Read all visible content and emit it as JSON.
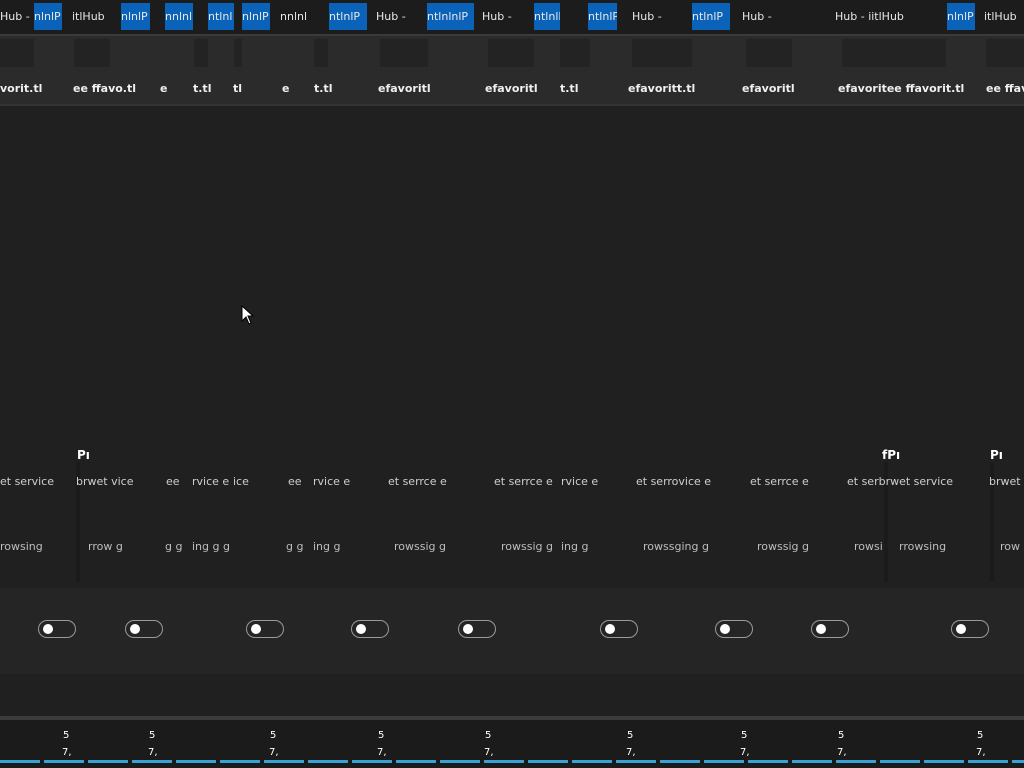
{
  "tabs": [
    {
      "label": "Hub -",
      "active": false
    },
    {
      "label": "nlnlP",
      "active": true
    },
    {
      "label": "itlHub",
      "active": false
    },
    {
      "label": "nlnlP",
      "active": true
    },
    {
      "label": "nnlnl",
      "active": true
    },
    {
      "label": "ntlnl",
      "active": true
    },
    {
      "label": "nlnlP",
      "active": true
    },
    {
      "label": "nnlnl",
      "active": false
    },
    {
      "label": "ntlnlP",
      "active": true
    },
    {
      "label": "Hub -",
      "active": false
    },
    {
      "label": "ntlnlnlP",
      "active": true
    },
    {
      "label": "Hub -",
      "active": false
    },
    {
      "label": "ntlnlP",
      "active": true
    },
    {
      "label": "Hub -",
      "active": false
    },
    {
      "label": "ntlnlP",
      "active": true
    },
    {
      "label": "Hub -",
      "active": false
    },
    {
      "label": "ntlnlP",
      "active": true
    },
    {
      "label": "Hub - iitlHub",
      "active": false
    },
    {
      "label": "nlnlP",
      "active": true
    },
    {
      "label": "itlHub",
      "active": false
    }
  ],
  "favorites": [
    "vorit.tl",
    "ee ffavo.tl",
    "e",
    "t.tl",
    "tl",
    "e",
    "t.tl",
    "efavoritl",
    "efavoritl",
    "t.tl",
    "efavoritt.tl",
    "efavoritl",
    "efavoritee ffavorit.tl",
    "ee ffavo"
  ],
  "headers": [
    "Pı",
    "fPı",
    "Pı"
  ],
  "services": [
    "et service",
    "brwet vice",
    "ee",
    "rvice e",
    "ice",
    "ee",
    "rvice e",
    "et serrce e",
    "et serrce e",
    "rvice e",
    "et serrovice e",
    "et serrce e",
    "et serbrwet service",
    "brwet s"
  ],
  "browsing": [
    "rowsing",
    "rrow g",
    "g g",
    "ing g g",
    "g g",
    "ing g",
    "rowssig g",
    "rowssig g",
    "ing g",
    "rowssging g",
    "rowssig g",
    "rowsi",
    "rrowsing",
    "row"
  ],
  "toggles": [
    {
      "state": "off"
    },
    {
      "state": "off"
    },
    {
      "state": "off"
    },
    {
      "state": "off"
    },
    {
      "state": "off"
    },
    {
      "state": "off"
    },
    {
      "state": "off"
    },
    {
      "state": "off"
    },
    {
      "state": "off"
    }
  ],
  "bottom_labels": [
    "5",
    "7,"
  ],
  "colors": {
    "accent": "#0a63b8",
    "background": "#202020",
    "progress": "#3aa0d8"
  }
}
